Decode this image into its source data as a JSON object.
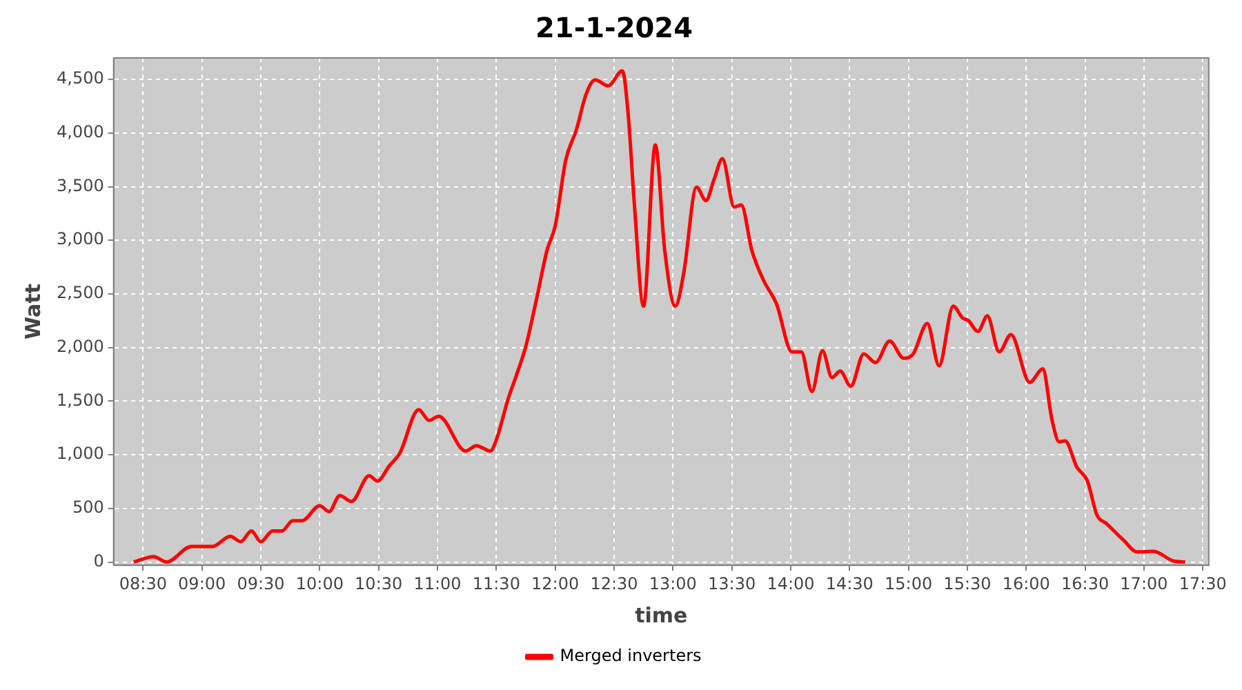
{
  "chart_data": {
    "type": "line",
    "title": "21-1-2024",
    "xlabel": "time",
    "ylabel": "Watt",
    "x": [
      8.42,
      8.59,
      8.7,
      8.91,
      9.09,
      9.24,
      9.33,
      9.42,
      9.5,
      9.6,
      9.68,
      9.77,
      9.85,
      10.0,
      10.08,
      10.17,
      10.27,
      10.42,
      10.49,
      10.59,
      10.68,
      10.84,
      10.93,
      11.01,
      11.24,
      11.33,
      11.45,
      11.5,
      11.6,
      11.67,
      11.75,
      11.84,
      11.93,
      12.0,
      12.09,
      12.18,
      12.26,
      12.34,
      12.45,
      12.57,
      12.62,
      12.67,
      12.75,
      12.85,
      12.93,
      13.02,
      13.09,
      13.2,
      13.28,
      13.35,
      13.42,
      13.52,
      13.58,
      13.67,
      13.77,
      13.88,
      14.01,
      14.09,
      14.18,
      14.27,
      14.35,
      14.42,
      14.51,
      14.62,
      14.72,
      14.84,
      14.96,
      15.04,
      15.16,
      15.26,
      15.38,
      15.46,
      15.51,
      15.59,
      15.67,
      15.77,
      15.87,
      16.03,
      16.14,
      16.22,
      16.28,
      16.33,
      16.43,
      16.52,
      16.6,
      16.68,
      16.83,
      16.94,
      17.08,
      17.25,
      17.35
    ],
    "series": [
      {
        "name": "Merged inverters",
        "color": "#ff0000",
        "values": [
          0,
          50,
          0,
          145,
          145,
          240,
          190,
          290,
          190,
          290,
          290,
          385,
          385,
          525,
          470,
          620,
          565,
          805,
          755,
          895,
          1015,
          1420,
          1320,
          1360,
          1035,
          1085,
          1035,
          1140,
          1520,
          1740,
          2010,
          2445,
          2905,
          3135,
          3750,
          4030,
          4355,
          4495,
          4440,
          4580,
          4170,
          3370,
          2385,
          3890,
          2905,
          2385,
          2685,
          3495,
          3370,
          3570,
          3760,
          3310,
          3330,
          2905,
          2625,
          2405,
          1960,
          1960,
          1590,
          1970,
          1720,
          1780,
          1640,
          1940,
          1860,
          2060,
          1900,
          1940,
          2225,
          1830,
          2385,
          2275,
          2250,
          2150,
          2295,
          1960,
          2120,
          1675,
          1800,
          1320,
          1120,
          1130,
          885,
          755,
          440,
          360,
          200,
          95,
          100,
          10,
          0
        ]
      }
    ],
    "xlim": [
      8.25,
      17.55
    ],
    "xticks": [
      {
        "value": 8.5,
        "label": "08:30"
      },
      {
        "value": 9,
        "label": "09:00"
      },
      {
        "value": 9.5,
        "label": "09:30"
      },
      {
        "value": 10,
        "label": "10:00"
      },
      {
        "value": 10.5,
        "label": "10:30"
      },
      {
        "value": 11,
        "label": "11:00"
      },
      {
        "value": 11.5,
        "label": "11:30"
      },
      {
        "value": 12,
        "label": "12:00"
      },
      {
        "value": 12.5,
        "label": "12:30"
      },
      {
        "value": 13,
        "label": "13:00"
      },
      {
        "value": 13.5,
        "label": "13:30"
      },
      {
        "value": 14,
        "label": "14:00"
      },
      {
        "value": 14.5,
        "label": "14:30"
      },
      {
        "value": 15,
        "label": "15:00"
      },
      {
        "value": 15.5,
        "label": "15:30"
      },
      {
        "value": 16,
        "label": "16:00"
      },
      {
        "value": 16.5,
        "label": "16:30"
      },
      {
        "value": 17,
        "label": "17:00"
      },
      {
        "value": 17.5,
        "label": "17:30"
      }
    ],
    "ylim": [
      -30,
      4700
    ],
    "yticks": [
      0,
      500,
      {
        "value": 1000,
        "label": "1,000"
      },
      {
        "value": 1500,
        "label": "1,500"
      },
      {
        "value": 2000,
        "label": "2,000"
      },
      {
        "value": 2500,
        "label": "2,500"
      },
      {
        "value": 3000,
        "label": "3,000"
      },
      {
        "value": 3500,
        "label": "3,500"
      },
      {
        "value": 4000,
        "label": "4,000"
      },
      {
        "value": 4500,
        "label": "4,500"
      }
    ],
    "grid": true,
    "legend": "bottom",
    "marker": "none",
    "line_style": "solid"
  }
}
